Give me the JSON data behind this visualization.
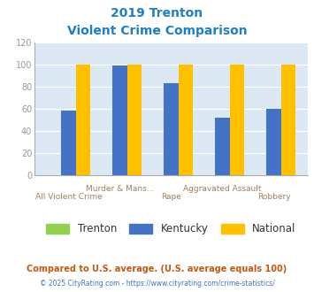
{
  "title_line1": "2019 Trenton",
  "title_line2": "Violent Crime Comparison",
  "categories": [
    "All Violent Crime",
    "Murder & Mans...",
    "Rape",
    "Aggravated Assault",
    "Robbery"
  ],
  "series": {
    "Trenton": [
      0,
      0,
      0,
      0,
      0
    ],
    "Kentucky": [
      58,
      99,
      83,
      52,
      60
    ],
    "National": [
      100,
      100,
      100,
      100,
      100
    ]
  },
  "colors": {
    "Trenton": "#92d050",
    "Kentucky": "#4472c4",
    "National": "#ffc000"
  },
  "ylim": [
    0,
    120
  ],
  "yticks": [
    0,
    20,
    40,
    60,
    80,
    100,
    120
  ],
  "bar_width": 0.28,
  "background_color": "#dce9f5",
  "title_color": "#1f7ec4",
  "axis_color": "#aaaaaa",
  "tick_color": "#999999",
  "label_color": "#a08060",
  "footnote1": "Compared to U.S. average. (U.S. average equals 100)",
  "footnote2": "© 2025 CityRating.com - https://www.cityrating.com/crime-statistics/",
  "footnote1_color": "#c45911",
  "footnote2_color": "#4472c4",
  "legend_text_color": "#333333"
}
